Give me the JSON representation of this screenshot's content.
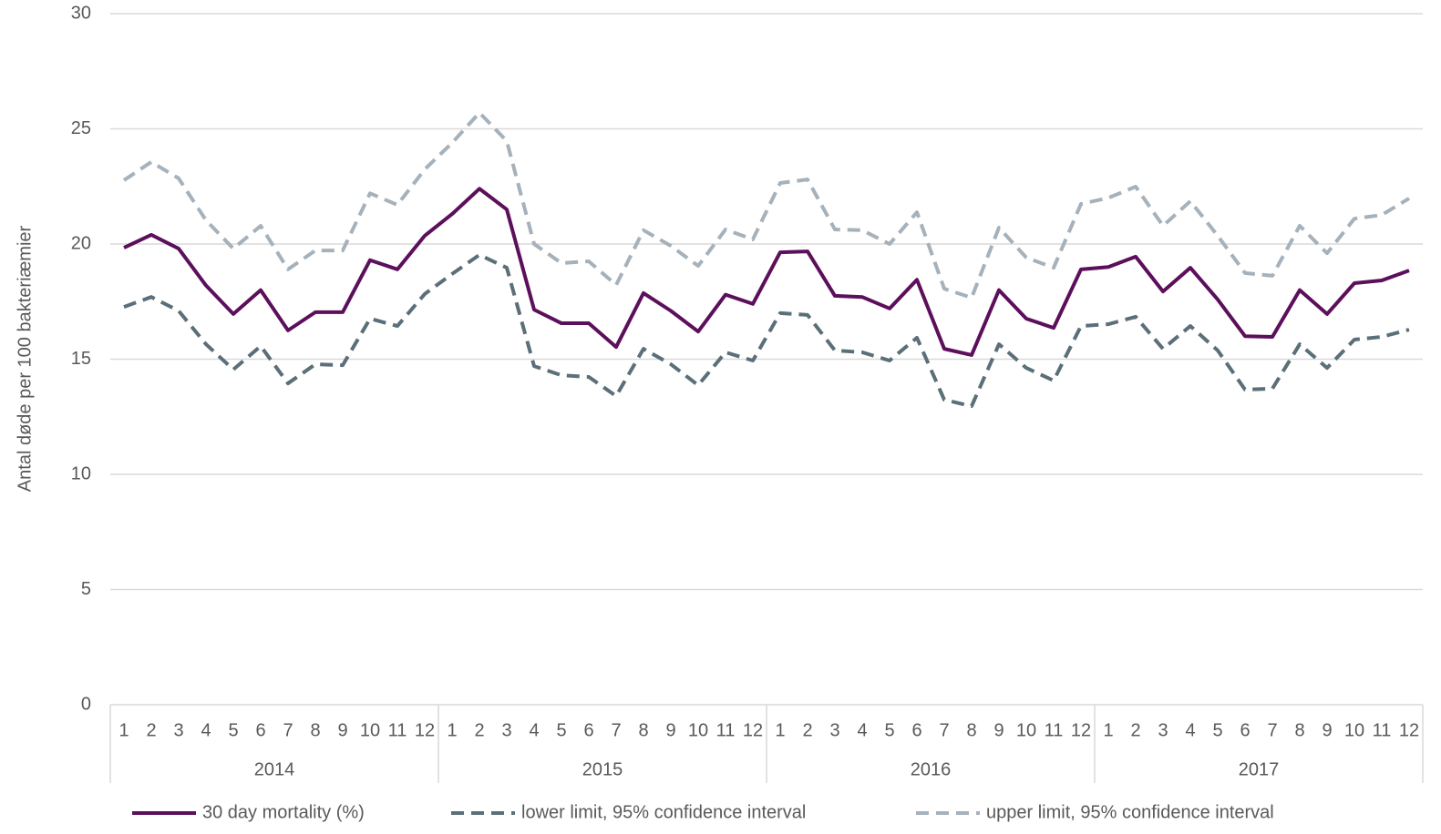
{
  "chart_data": {
    "type": "line",
    "y_label": "Antal døde per 100 bakteriæmier",
    "categories": [
      "1",
      "2",
      "3",
      "4",
      "5",
      "6",
      "7",
      "8",
      "9",
      "10",
      "11",
      "12",
      "1",
      "2",
      "3",
      "4",
      "5",
      "6",
      "7",
      "8",
      "9",
      "10",
      "11",
      "12",
      "1",
      "2",
      "3",
      "4",
      "5",
      "6",
      "7",
      "8",
      "9",
      "10",
      "11",
      "12",
      "1",
      "2",
      "3",
      "4",
      "5",
      "6",
      "7",
      "8",
      "9",
      "10",
      "11",
      "12"
    ],
    "years": [
      "2014",
      "2015",
      "2016",
      "2017"
    ],
    "ylim": [
      0,
      30
    ],
    "yticks": [
      0,
      5,
      10,
      15,
      20,
      25,
      30
    ],
    "grid": true,
    "legend": "bottom",
    "series": [
      {
        "name": "30 day mortality (%)",
        "color": "#5c0f5b",
        "style": "solid",
        "values": [
          19.84,
          20.4,
          19.8,
          18.2,
          16.96,
          18.0,
          16.25,
          17.04,
          17.04,
          19.3,
          18.9,
          20.36,
          21.3,
          22.4,
          21.5,
          17.15,
          16.56,
          16.56,
          15.53,
          17.87,
          17.1,
          16.2,
          17.8,
          17.4,
          19.64,
          19.68,
          17.75,
          17.7,
          17.2,
          18.45,
          15.45,
          15.18,
          18.0,
          16.76,
          16.36,
          18.9,
          19.0,
          19.45,
          17.94,
          18.97,
          17.59,
          16.0,
          15.97,
          18.0,
          16.96,
          18.3,
          18.42,
          18.85
        ]
      },
      {
        "name": "lower limit, 95% confidence interval",
        "color": "#5b6f79",
        "style": "dashed",
        "values": [
          17.27,
          17.7,
          17.1,
          15.65,
          14.55,
          15.57,
          13.95,
          14.78,
          14.74,
          16.76,
          16.44,
          17.83,
          18.7,
          19.53,
          18.97,
          14.7,
          14.3,
          14.23,
          13.4,
          15.45,
          14.78,
          13.87,
          15.3,
          14.94,
          17.0,
          16.92,
          15.38,
          15.3,
          14.94,
          15.93,
          13.24,
          12.96,
          15.65,
          14.62,
          14.07,
          16.44,
          16.52,
          16.84,
          15.45,
          16.44,
          15.38,
          13.68,
          13.72,
          15.65,
          14.62,
          15.85,
          15.97,
          16.28
        ]
      },
      {
        "name": "upper limit, 95% confidence interval",
        "color": "#a5b1bb",
        "style": "dashed",
        "values": [
          22.77,
          23.56,
          22.85,
          21.03,
          19.8,
          20.79,
          18.9,
          19.72,
          19.72,
          22.2,
          21.7,
          23.24,
          24.39,
          25.7,
          24.47,
          20.0,
          19.17,
          19.25,
          18.22,
          20.6,
          19.92,
          19.05,
          20.63,
          20.2,
          22.65,
          22.8,
          20.63,
          20.6,
          20.0,
          21.38,
          18.06,
          17.67,
          20.71,
          19.41,
          18.97,
          21.74,
          22.0,
          22.49,
          20.79,
          21.86,
          20.36,
          18.74,
          18.62,
          20.79,
          19.6,
          21.1,
          21.26,
          21.98
        ]
      }
    ]
  }
}
